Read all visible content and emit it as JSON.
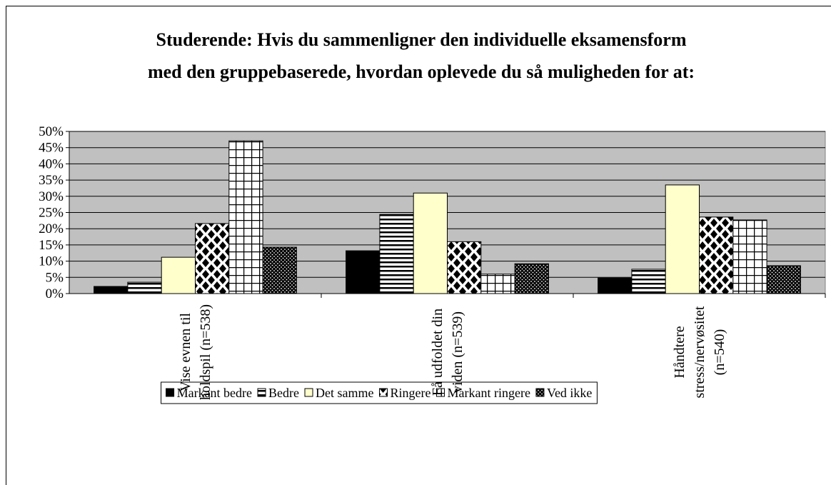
{
  "chart_data": {
    "type": "bar",
    "title": "Studerende: Hvis du sammenligner den individuelle eksamensform\nmed den gruppebaserede, hvordan oplevede du så muligheden for at:",
    "categories": [
      "Vise evnen til\nholdspil (n=538)",
      "Få udfoldet din\nviden (n=539)",
      "Håndtere\nstress/nervøsitet\n(n=540)"
    ],
    "series": [
      {
        "name": "Markant bedre",
        "color": "#000000",
        "pattern": "solid",
        "values": [
          2.2,
          13.2,
          4.8
        ]
      },
      {
        "name": "Bedre",
        "color": "#ffffff",
        "pattern": "horizontal",
        "values": [
          3.5,
          24.4,
          7.5
        ]
      },
      {
        "name": "Det samme",
        "color": "#ffffcc",
        "pattern": "solid",
        "values": [
          11.2,
          31,
          33.5
        ]
      },
      {
        "name": "Ringere",
        "color": "#ffffff",
        "pattern": "diamonds",
        "values": [
          21.6,
          16,
          23.6
        ]
      },
      {
        "name": "Markant ringere",
        "color": "#ffffff",
        "pattern": "grid",
        "values": [
          47.1,
          6,
          22.7
        ]
      },
      {
        "name": "Ved ikke",
        "color": "#000000",
        "pattern": "dots",
        "values": [
          14.3,
          9.2,
          8.6
        ]
      }
    ],
    "ylim": [
      0,
      50
    ],
    "yticks": [
      {
        "value": 0,
        "label": "0%"
      },
      {
        "value": 5,
        "label": "5%"
      },
      {
        "value": 10,
        "label": "10%"
      },
      {
        "value": 15,
        "label": "15%"
      },
      {
        "value": 20,
        "label": "20%"
      },
      {
        "value": 25,
        "label": "25%"
      },
      {
        "value": 30,
        "label": "30%"
      },
      {
        "value": 35,
        "label": "35%"
      },
      {
        "value": 40,
        "label": "40%"
      },
      {
        "value": 45,
        "label": "45%"
      },
      {
        "value": 50,
        "label": "50%"
      }
    ],
    "grid": true,
    "plot_background": "#c0c0c0",
    "legend": "bottom"
  }
}
